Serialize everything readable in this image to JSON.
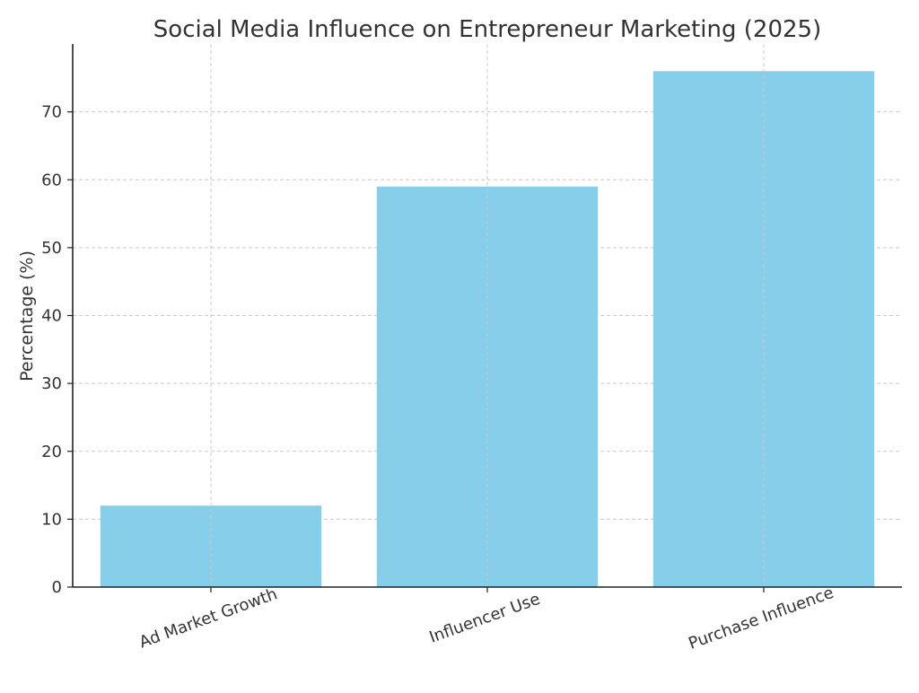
{
  "chart_data": {
    "type": "bar",
    "title": "Social Media Influence on Entrepreneur Marketing (2025)",
    "xlabel": "",
    "ylabel": "Percentage (%)",
    "categories": [
      "Ad Market Growth",
      "Influencer Use",
      "Purchase Influence"
    ],
    "values": [
      12,
      59,
      76
    ],
    "ylim": [
      0,
      80
    ],
    "yticks": [
      0,
      10,
      20,
      30,
      40,
      50,
      60,
      70
    ],
    "grid": true,
    "legend": "none",
    "colors": {
      "bar": "#87ceeb",
      "grid": "#c8c8c8",
      "text": "#333333",
      "axis": "#222222"
    }
  }
}
